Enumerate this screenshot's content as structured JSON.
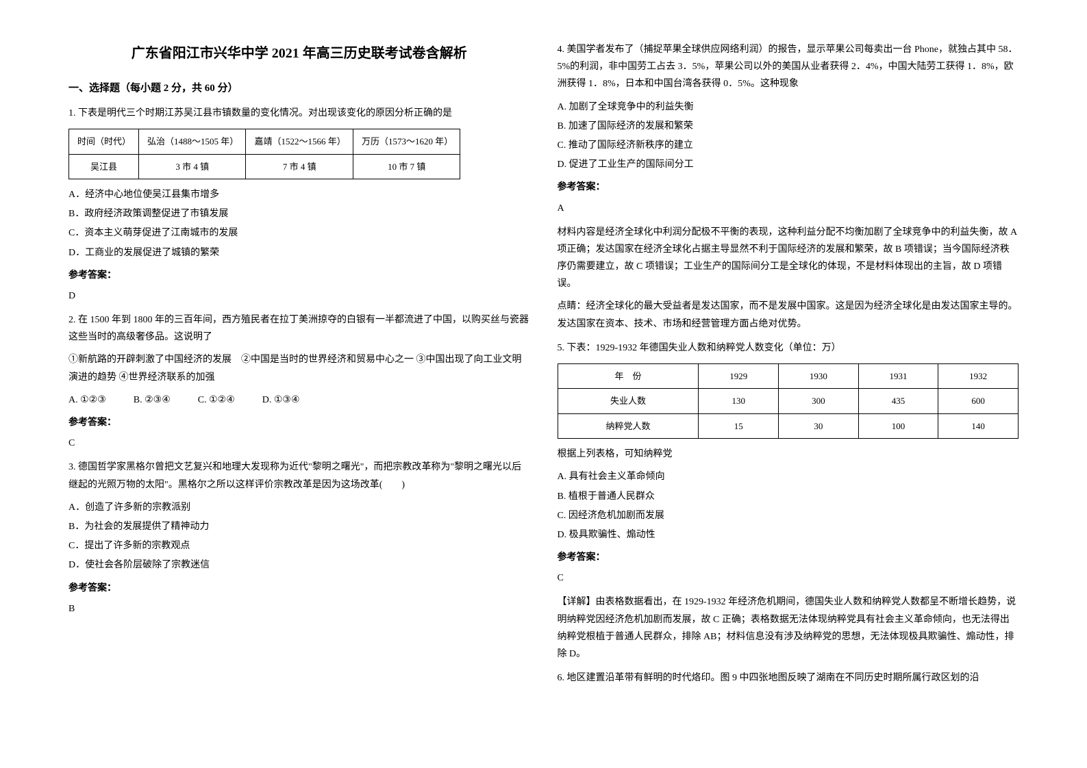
{
  "title": "广东省阳江市兴华中学 2021 年高三历史联考试卷含解析",
  "section1": {
    "heading": "一、选择题（每小题 2 分，共 60 分）"
  },
  "q1": {
    "text": "1. 下表是明代三个时期江苏吴江县市镇数量的变化情况。对出现该变化的原因分析正确的是",
    "table": {
      "headers": [
        "时间（时代）",
        "弘治（1488～1505 年）",
        "嘉靖（1522～1566 年）",
        "万历（1573～1620 年）"
      ],
      "row_label": "吴江县",
      "cells": [
        "3 市 4 镇",
        "7 市 4 镇",
        "10 市 7 镇"
      ]
    },
    "options": {
      "a": "A．经济中心地位使吴江县集市增多",
      "b": "B．政府经济政策调整促进了市镇发展",
      "c": "C．资本主义萌芽促进了江南城市的发展",
      "d": "D．工商业的发展促进了城镇的繁荣"
    },
    "answer_label": "参考答案：",
    "answer": "D"
  },
  "q2": {
    "text1": "2. 在 1500 年到 1800 年的三百年间，西方殖民者在拉丁美洲掠夺的白银有一半都流进了中国，以购买丝与瓷器这些当时的高级奢侈品。这说明了",
    "text2": "①新航路的开辟刺激了中国经济的发展　②中国是当时的世界经济和贸易中心之一 ③中国出现了向工业文明演进的趋势 ④世界经济联系的加强",
    "options": {
      "a": "A. ①②③",
      "b": "B. ②③④",
      "c": "C. ①②④",
      "d": "D. ①③④"
    },
    "answer_label": "参考答案：",
    "answer": "C"
  },
  "q3": {
    "text": "3. 德国哲学家黑格尔曾把文艺复兴和地理大发现称为近代\"黎明之曙光\"，而把宗教改革称为\"黎明之曙光以后继起的光照万物的太阳\"。黑格尔之所以这样评价宗教改革是因为这场改革(　　)",
    "options": {
      "a": "A．创造了许多新的宗教派别",
      "b": "B．为社会的发展提供了精神动力",
      "c": "C．提出了许多新的宗教观点",
      "d": "D．使社会各阶层破除了宗教迷信"
    },
    "answer_label": "参考答案：",
    "answer": "B"
  },
  "q4": {
    "text": "4. 美国学者发布了（捕捉苹果全球供应网络利润）的报告，显示苹果公司每卖出一台 Phone，就独占其中 58．5%的利润，非中国劳工占去 3．5%，苹果公司以外的美国从业者获得 2．4%，中国大陆劳工获得 1．8%，欧洲获得 1．8%，日本和中国台湾各获得 0．5%。这种现象",
    "options": {
      "a": "A. 加剧了全球竞争中的利益失衡",
      "b": "B. 加速了国际经济的发展和繁荣",
      "c": "C. 推动了国际经济新秩序的建立",
      "d": "D. 促进了工业生产的国际间分工"
    },
    "answer_label": "参考答案：",
    "answer": "A",
    "explanation1": "材料内容是经济全球化中利润分配极不平衡的表现，这种利益分配不均衡加剧了全球竞争中的利益失衡，故 A 项正确；发达国家在经济全球化占据主导显然不利于国际经济的发展和繁荣，故 B 项错误；当今国际经济秩序仍需要建立，故 C 项错误；工业生产的国际间分工是全球化的体现，不是材料体现出的主旨，故 D 项错误。",
    "explanation2": "点睛：经济全球化的最大受益者是发达国家，而不是发展中国家。这是因为经济全球化是由发达国家主导的。发达国家在资本、技术、市场和经营管理方面占绝对优势。"
  },
  "q5": {
    "text": "5. 下表：1929-1932 年德国失业人数和纳粹党人数变化（单位：万）",
    "table": {
      "header_row": [
        "年　份",
        "1929",
        "1930",
        "1931",
        "1932"
      ],
      "row1": [
        "失业人数",
        "130",
        "300",
        "435",
        "600"
      ],
      "row2": [
        "纳粹党人数",
        "15",
        "30",
        "100",
        "140"
      ]
    },
    "subtext": "根据上列表格，可知纳粹党",
    "options": {
      "a": "A. 具有社会主义革命倾向",
      "b": "B. 植根于普通人民群众",
      "c": "C. 因经济危机加剧而发展",
      "d": "D. 极具欺骗性、煽动性"
    },
    "answer_label": "参考答案：",
    "answer": "C",
    "explanation": "【详解】由表格数据看出，在 1929-1932 年经济危机期间，德国失业人数和纳粹党人数都呈不断增长趋势，说明纳粹党因经济危机加剧而发展，故 C 正确；表格数据无法体现纳粹党具有社会主义革命倾向，也无法得出纳粹党根植于普通人民群众，排除 AB；材料信息没有涉及纳粹党的思想，无法体现极具欺骗性、煽动性，排除 D。"
  },
  "q6": {
    "text": "6. 地区建置沿革带有鲜明的时代烙印。图 9 中四张地图反映了湖南在不同历史时期所属行政区划的沿"
  }
}
